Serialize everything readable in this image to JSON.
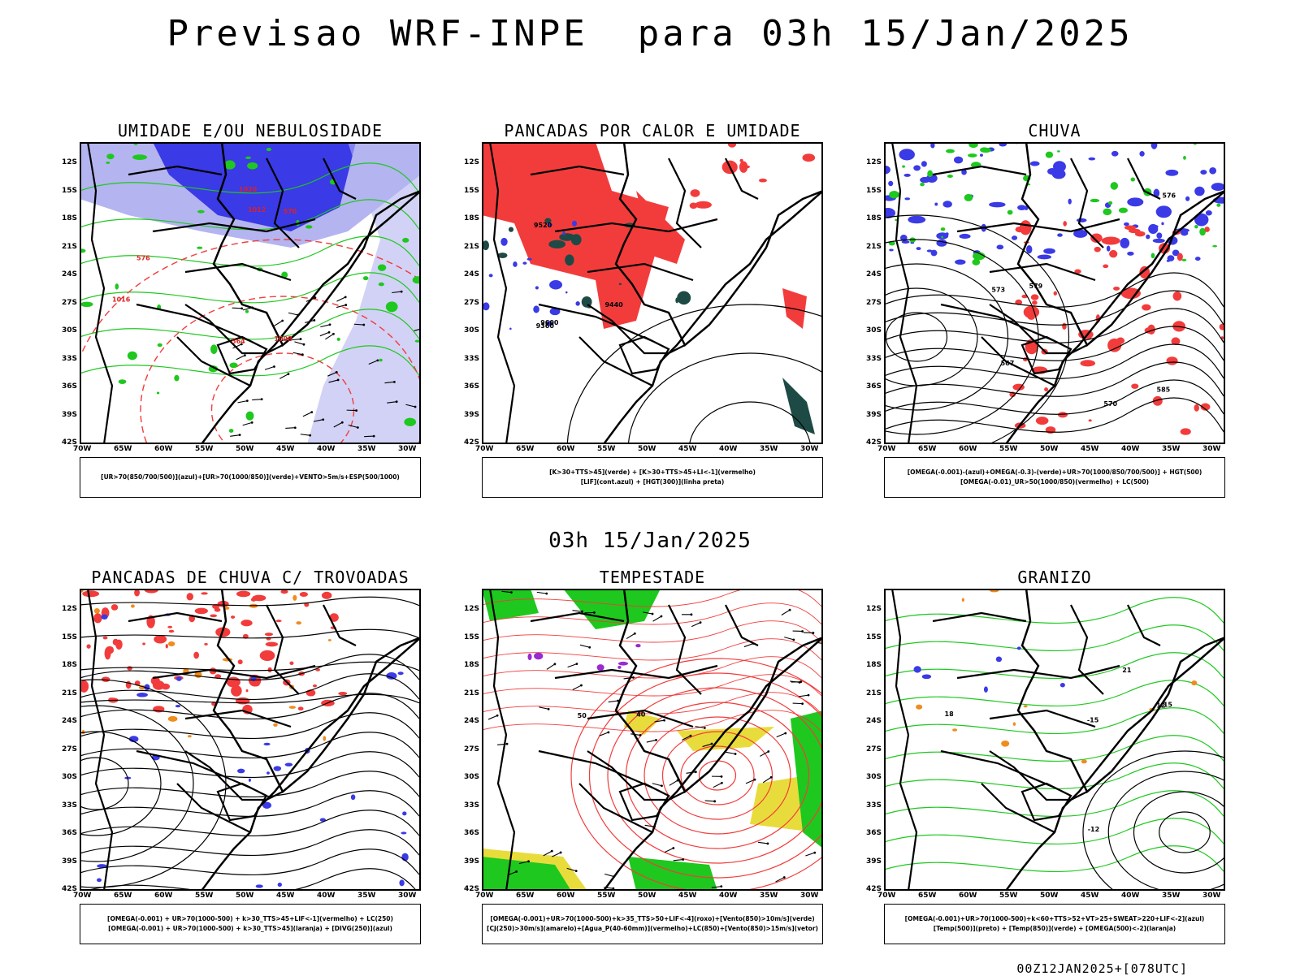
{
  "title": "Previsao WRF-INPE  para 03h 15/Jan/2025",
  "mid_title": "03h 15/Jan/2025",
  "footer": "00Z12JAN2025+[078UTC]",
  "lat_labels": [
    "12S",
    "15S",
    "18S",
    "21S",
    "24S",
    "27S",
    "30S",
    "33S",
    "36S",
    "39S",
    "42S"
  ],
  "lon_labels": [
    "70W",
    "65W",
    "60W",
    "55W",
    "50W",
    "45W",
    "40W",
    "35W",
    "30W"
  ],
  "colors": {
    "blue": "#3a3ae6",
    "light_blue": "#b4b4f0",
    "green": "#1ec81e",
    "red": "#f23c3c",
    "dark_teal": "#1e4a46",
    "yellow": "#e8dc3c",
    "orange": "#f08c1e",
    "purple": "#9a2ad2"
  },
  "panels": [
    {
      "title": "UMIDADE E/OU NEBULOSIDADE",
      "legend": [
        "[UR>70(850/700/500)](azul)+[UR>70(1000/850)](verde)+VENTO>5m/s+ESP(500/1000)"
      ],
      "contour_labels": [
        "1008",
        "1012",
        "1016",
        "1020",
        "570",
        "576",
        "564"
      ]
    },
    {
      "title": "PANCADAS POR CALOR E UMIDADE",
      "legend": [
        "[K>30+TTS>45](verde) + [K>30+TTS>45+LI<-1](vermelho)",
        "[LIF](cont.azul) + [HGT(300)](linha preta)"
      ],
      "contour_labels": [
        "9520",
        "9600",
        "9440",
        "9360"
      ]
    },
    {
      "title": "CHUVA",
      "legend": [
        "[OMEGA(-0.001)-(azul)+OMEGA(-0.3)-(verde)+UR>70(1000/850/700/500)] + HGT(500)",
        "[OMEGA(-0.01)_UR>50(1000/850)(vermelho) + LC(500)"
      ],
      "contour_labels": [
        "579",
        "576",
        "573",
        "570",
        "567",
        "585"
      ]
    },
    {
      "title": "PANCADAS DE CHUVA C/ TROVOADAS",
      "legend": [
        "[OMEGA(-0.001) + UR>70(1000-500) + k>30_TTS>45+LIF<-1](vermelho) + LC(250)",
        "[OMEGA(-0.001) + UR>70(1000-500) + k>30_TTS>45](laranja) + [DIVG(250)](azul)"
      ],
      "contour_labels": []
    },
    {
      "title": "TEMPESTADE",
      "legend": [
        "[OMEGA(-0.001)+UR>70(1000-500)+k>35_TTS>50+LIF<-4](roxo)+[Vento(850)>10m/s](verde)",
        "[CJ(250)>30m/s](amarelo)+[Agua_P(40-60mm)](vermelho)+LC(850)+[Vento(850)>15m/s](vetor)"
      ],
      "contour_labels": [
        "40",
        "50"
      ]
    },
    {
      "title": "GRANIZO",
      "legend": [
        "[OMEGA(-0.001)+UR>70(1000-500)+k<60+TTS>52+VT>25+SWEAT>220+LIF<-2](azul)",
        "[Temp(500)](preto) + [Temp(850)](verde) + [OMEGA(500)<-2](laranja)"
      ],
      "contour_labels": [
        "-15",
        "-12",
        "12",
        "15",
        "21",
        "18"
      ]
    }
  ]
}
